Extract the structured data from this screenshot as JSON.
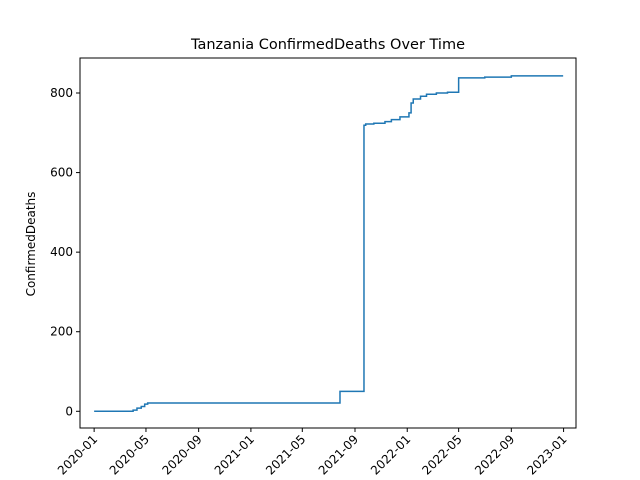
{
  "chart_data": {
    "type": "line",
    "title": "Tanzania  ConfirmedDeaths Over Time",
    "xlabel": "",
    "ylabel": "ConfirmedDeaths",
    "x_range": [
      "2019-11-29",
      "2023-01-30"
    ],
    "ylim": [
      -42,
      888
    ],
    "y_ticks": [
      0,
      200,
      400,
      600,
      800
    ],
    "x_ticks": [
      "2020-01",
      "2020-05",
      "2020-09",
      "2021-01",
      "2021-05",
      "2021-09",
      "2022-01",
      "2022-05",
      "2022-09",
      "2023-01"
    ],
    "grid": false,
    "legend": "none",
    "series": [
      {
        "color": "#1f77b4",
        "step": true,
        "points": [
          [
            "2020-01-01",
            0
          ],
          [
            "2020-03-25",
            0
          ],
          [
            "2020-04-01",
            3
          ],
          [
            "2020-04-10",
            8
          ],
          [
            "2020-04-20",
            12
          ],
          [
            "2020-04-28",
            18
          ],
          [
            "2020-05-05",
            21
          ],
          [
            "2021-07-25",
            21
          ],
          [
            "2021-07-28",
            50
          ],
          [
            "2021-09-20",
            50
          ],
          [
            "2021-09-22",
            719
          ],
          [
            "2021-09-26",
            722
          ],
          [
            "2021-10-15",
            724
          ],
          [
            "2021-11-10",
            728
          ],
          [
            "2021-11-25",
            733
          ],
          [
            "2021-12-15",
            740
          ],
          [
            "2022-01-05",
            750
          ],
          [
            "2022-01-10",
            775
          ],
          [
            "2022-01-15",
            785
          ],
          [
            "2022-02-01",
            792
          ],
          [
            "2022-02-15",
            797
          ],
          [
            "2022-03-10",
            800
          ],
          [
            "2022-04-05",
            802
          ],
          [
            "2022-05-01",
            838
          ],
          [
            "2022-07-01",
            840
          ],
          [
            "2022-09-01",
            843
          ],
          [
            "2022-12-31",
            843
          ]
        ]
      }
    ]
  }
}
